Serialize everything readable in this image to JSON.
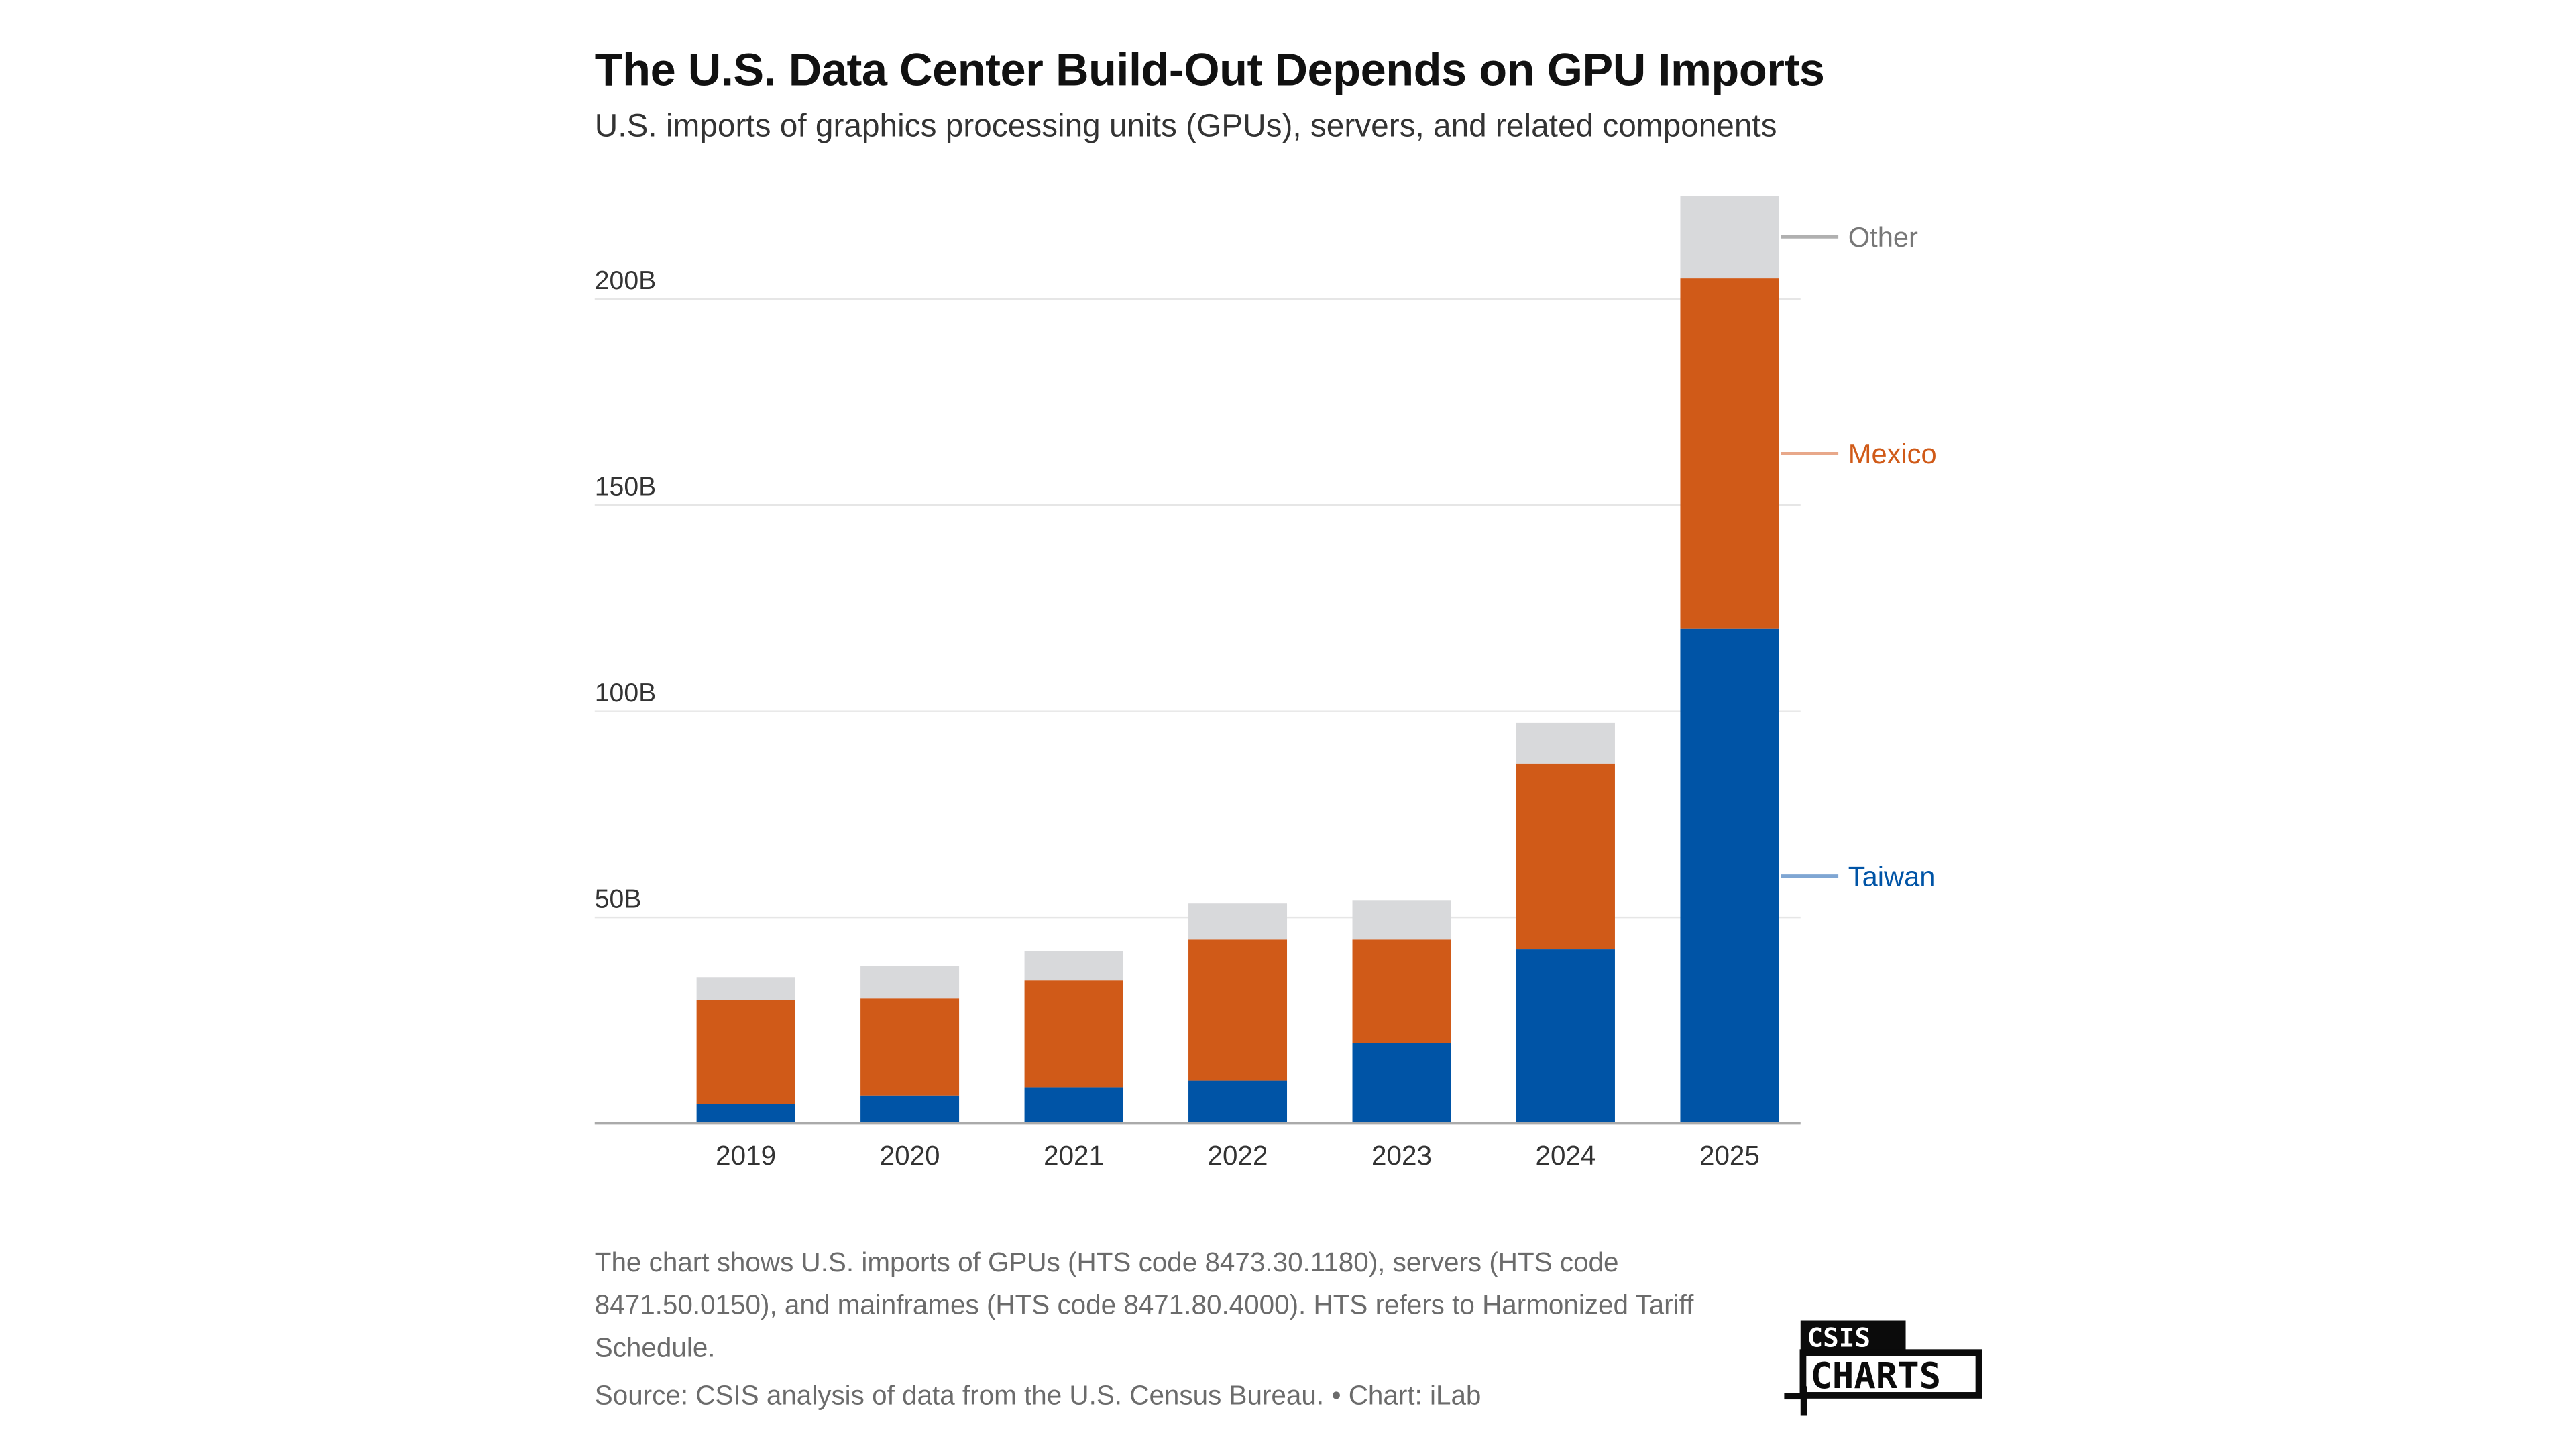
{
  "header": {
    "title": "The U.S. Data Center Build-Out Depends on GPU Imports",
    "subtitle": "U.S. imports of graphics processing units (GPUs), servers, and related components"
  },
  "footer": {
    "note": "The chart shows U.S. imports of GPUs (HTS code 8473.30.1180), servers (HTS code 8471.50.0150), and mainframes (HTS code 8471.80.4000). HTS refers to Harmonized Tariff Schedule.",
    "source": "Source: CSIS analysis of data from the U.S. Census Bureau. • Chart: iLab",
    "logo_top": "CSIS",
    "logo_bottom": "CHARTS"
  },
  "chart_data": {
    "type": "bar",
    "stacked": true,
    "title": "The U.S. Data Center Build-Out Depends on GPU Imports",
    "xlabel": "",
    "ylabel": "",
    "categories": [
      "2019",
      "2020",
      "2021",
      "2022",
      "2023",
      "2024",
      "2025"
    ],
    "ylim": [
      0,
      225
    ],
    "yticks": [
      50,
      100,
      150,
      200
    ],
    "ytick_labels": [
      "50B",
      "100B",
      "150B",
      "200B"
    ],
    "grid": true,
    "legend": "direct-labels-right",
    "series": [
      {
        "name": "Taiwan",
        "color": "#0054a6",
        "values": [
          4.8,
          6.8,
          8.8,
          10.4,
          19.5,
          42.2,
          120
        ]
      },
      {
        "name": "Mexico",
        "color": "#d05a18",
        "values": [
          25.1,
          23.5,
          25.9,
          34.2,
          25.1,
          45.1,
          85
        ]
      },
      {
        "name": "Other",
        "color": "#d8d9db",
        "values": [
          5.6,
          7.9,
          7.1,
          8.8,
          9.6,
          9.9,
          20
        ]
      }
    ],
    "label_colors": {
      "Taiwan": "#0054a6",
      "Mexico": "#d05a18",
      "Other": "#777777"
    },
    "line_colors": {
      "Taiwan": "#7fa6d3",
      "Mexico": "#e8a88a",
      "Other": "#b0b0b0"
    }
  }
}
